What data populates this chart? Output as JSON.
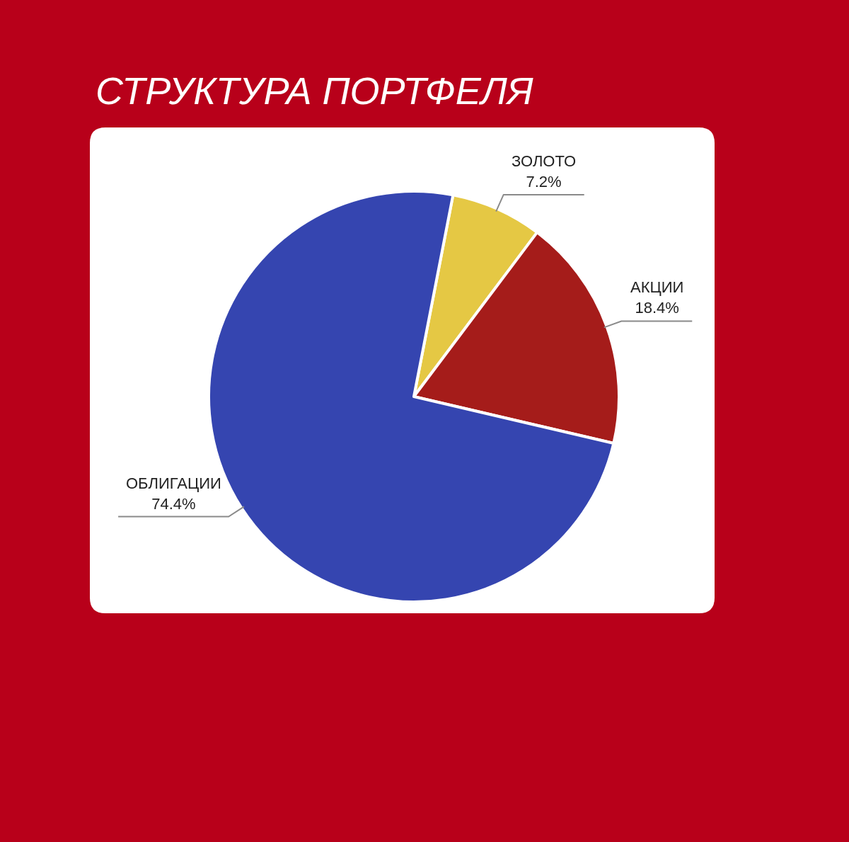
{
  "chart_data": {
    "type": "pie",
    "title": "СТРУКТУРА ПОРТФЕЛЯ",
    "categories": [
      "ЗОЛОТО",
      "АКЦИИ",
      "ОБЛИГАЦИИ"
    ],
    "values": [
      7.2,
      18.4,
      74.4
    ],
    "value_labels": [
      "7.2%",
      "18.4%",
      "74.4%"
    ],
    "colors": [
      "#e5c844",
      "#a51c1a",
      "#3545b0"
    ],
    "legend": false
  }
}
